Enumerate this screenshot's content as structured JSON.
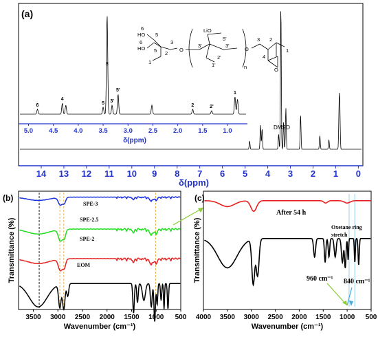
{
  "panels": {
    "a": "(a)",
    "b": "(b)",
    "c": "(c)"
  },
  "structure_labels": {
    "c6a": "6",
    "ho1": "HO",
    "c5a": "5",
    "c6b": "6",
    "ho2": "HO",
    "c5b": "5",
    "c2": "2",
    "c1": "1",
    "c3": "3",
    "lio": "LiO",
    "c5p": "5'",
    "c3p1": "3'",
    "c3p2": "3'",
    "o_mid": "O",
    "c2p": "2'",
    "c1p": "1'",
    "n": "n",
    "o_right": "O",
    "c3r": "3",
    "c2r": "2",
    "c1r": "1",
    "c4r": "4",
    "o_ring": "O"
  },
  "colors": {
    "spe3": "#1a2fe0",
    "spe25": "#22dd22",
    "spe2": "#e82020",
    "eom": "#000000",
    "after54": "#e82020",
    "axis_blue": "#2233cc",
    "guide_gold": "#e8b040",
    "arrow_green": "#88cc33",
    "arrow_blue": "#44aadd"
  },
  "chart_data": [
    {
      "id": "a",
      "type": "line",
      "title": "",
      "xlabel": "δ(ppm)",
      "ylabel": "",
      "xlim": [
        15.0,
        -0.2
      ],
      "x_ticks": [
        14,
        13,
        12,
        11,
        10,
        9,
        8,
        7,
        6,
        5,
        4,
        3,
        2,
        1,
        0
      ],
      "peaks": [
        {
          "ppm": 4.8,
          "height": 0.12
        },
        {
          "ppm": 4.32,
          "height": 0.35
        },
        {
          "ppm": 4.25,
          "height": 0.3
        },
        {
          "ppm": 3.52,
          "height": 0.22
        },
        {
          "ppm": 3.42,
          "height": 2.1
        },
        {
          "ppm": 3.3,
          "height": 0.4
        },
        {
          "ppm": 3.2,
          "height": 0.6
        },
        {
          "ppm": 2.55,
          "height": 0.5
        },
        {
          "ppm": 1.7,
          "height": 0.2
        },
        {
          "ppm": 1.3,
          "height": 0.14
        },
        {
          "ppm": 0.85,
          "height": 0.55
        },
        {
          "ppm": 0.82,
          "height": 0.6
        }
      ],
      "annotations": [
        "DMSO"
      ],
      "inset": {
        "xlabel": "δ(ppm)",
        "xlim": [
          5.2,
          0.6
        ],
        "x_ticks": [
          5.0,
          4.5,
          4.0,
          3.5,
          3.0,
          2.5,
          2.0,
          1.5,
          1.0
        ],
        "peaks": [
          {
            "ppm": 4.82,
            "height": 0.1,
            "label": "6"
          },
          {
            "ppm": 4.32,
            "height": 0.22,
            "label": "4"
          },
          {
            "ppm": 4.25,
            "height": 0.18,
            "label": ""
          },
          {
            "ppm": 3.5,
            "height": 0.14,
            "label": "5"
          },
          {
            "ppm": 3.42,
            "height": 2.0,
            "label": "3"
          },
          {
            "ppm": 3.32,
            "height": 0.18,
            "label": "3'"
          },
          {
            "ppm": 3.2,
            "height": 0.4,
            "label": "5'"
          },
          {
            "ppm": 2.52,
            "height": 0.18,
            "label": ""
          },
          {
            "ppm": 1.7,
            "height": 0.1,
            "label": "2"
          },
          {
            "ppm": 1.32,
            "height": 0.07,
            "label": "2'"
          },
          {
            "ppm": 0.85,
            "height": 0.35,
            "label": "1"
          },
          {
            "ppm": 0.8,
            "height": 0.3,
            "label": ""
          }
        ]
      }
    },
    {
      "id": "b",
      "type": "line",
      "title": "",
      "xlabel": "Wavenumber (cm⁻¹)",
      "ylabel": "Transmittance (%)",
      "xlim": [
        3800,
        500
      ],
      "x_ticks": [
        3500,
        3000,
        2500,
        2000,
        1500,
        1000,
        500
      ],
      "series": [
        {
          "name": "SPE-3",
          "offset": 0.95,
          "scale": 0.08
        },
        {
          "name": "SPE-2.5",
          "offset": 0.68,
          "scale": 0.12
        },
        {
          "name": "SPE-2",
          "offset": 0.43,
          "scale": 0.12
        },
        {
          "name": "EOM",
          "offset": 0.22,
          "scale": 0.36
        }
      ],
      "guides": [
        3380,
        2960,
        2880,
        1010
      ]
    },
    {
      "id": "c",
      "type": "line",
      "title": "",
      "xlabel": "Wavenumber (cm⁻¹)",
      "ylabel": "Transmittance (%)",
      "xlim": [
        4000,
        500
      ],
      "x_ticks": [
        4000,
        3500,
        3000,
        2500,
        2000,
        1500,
        1000,
        500
      ],
      "series": [
        {
          "name": "After 54 h",
          "offset": 0.92,
          "scale": 0.1
        },
        {
          "name": "",
          "offset": 0.6,
          "scale": 0.45
        }
      ],
      "annotations": [
        "Oxetane ring",
        "stretch",
        "960 cm⁻¹",
        "840 cm⁻¹"
      ],
      "guides": [
        960,
        840
      ]
    }
  ]
}
